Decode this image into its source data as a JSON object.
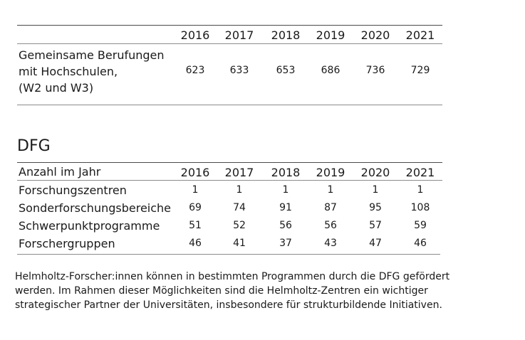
{
  "table1": {
    "years": [
      "2016",
      "2017",
      "2018",
      "2019",
      "2020",
      "2021"
    ],
    "row": {
      "label_lines": [
        "Gemeinsame Berufungen",
        "mit Hochschulen,",
        "(W2 und W3)"
      ],
      "values": [
        "623",
        "633",
        "653",
        "686",
        "736",
        "729"
      ]
    }
  },
  "dfg": {
    "title": "DFG",
    "header_label": "Anzahl im Jahr",
    "years": [
      "2016",
      "2017",
      "2018",
      "2019",
      "2020",
      "2021"
    ],
    "rows": [
      {
        "label": "Forschungszentren",
        "values": [
          "1",
          "1",
          "1",
          "1",
          "1",
          "1"
        ]
      },
      {
        "label": "Sonderforschungsbereiche",
        "values": [
          "69",
          "74",
          "91",
          "87",
          "95",
          "108"
        ]
      },
      {
        "label": "Schwerpunktprogramme",
        "values": [
          "51",
          "52",
          "56",
          "56",
          "57",
          "59"
        ]
      },
      {
        "label": "Forschergruppen",
        "values": [
          "46",
          "41",
          "37",
          "43",
          "47",
          "46"
        ]
      }
    ]
  },
  "footnote": "Helmholtz-Forscher:innen können in bestimmten Programmen durch die DFG gefördert werden. Im Rahmen dieser Möglichkeiten sind die Helmholtz-Zentren ein wichtiger strategischer Partner der Universitäten, insbesondere für strukturbildende Initiativen."
}
